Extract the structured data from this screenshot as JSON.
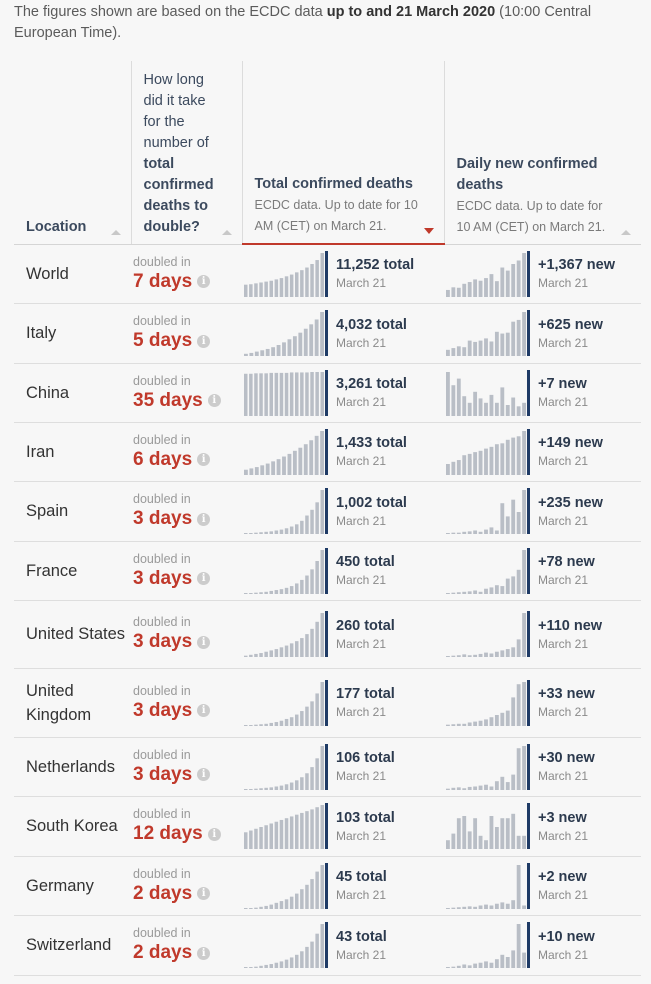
{
  "intro": {
    "prefix": "The figures shown are based on the ECDC data ",
    "emph": "up to and 21 March 2020",
    "suffix": " (10:00 Central European Time)."
  },
  "headers": {
    "location": "Location",
    "doubling": "How long did it take for the number of total confirmed deaths to double?",
    "doubling_parts": [
      "How long did it take for the number of",
      "total confirmed deaths to double?"
    ],
    "total_title": "Total confirmed deaths",
    "total_sub": "ECDC data. Up to date for 10 AM (CET) on March 21.",
    "daily_title": "Daily new confirmed deaths",
    "daily_sub": "ECDC data. Up to date for 10 AM (CET) on March 21."
  },
  "colors": {
    "accent": "#c0392b",
    "bar": "#b9bec6",
    "bar_highlight": "#1f3b66"
  },
  "rows": [
    {
      "location": "World",
      "doubled_label": "doubled in",
      "doubled": "7 days",
      "total": "11,252 total",
      "total_date": "March 21",
      "new": "+1,367 new",
      "new_date": "March 21",
      "total_series": [
        0.28,
        0.29,
        0.31,
        0.33,
        0.35,
        0.37,
        0.4,
        0.43,
        0.47,
        0.51,
        0.56,
        0.61,
        0.67,
        0.75,
        0.84,
        1.0
      ],
      "new_series": [
        0.16,
        0.22,
        0.21,
        0.3,
        0.34,
        0.4,
        0.37,
        0.43,
        0.52,
        0.36,
        0.67,
        0.6,
        0.75,
        0.83,
        1.0
      ]
    },
    {
      "location": "Italy",
      "doubled_label": "doubled in",
      "doubled": "5 days",
      "total": "4,032 total",
      "total_date": "March 21",
      "new": "+625 new",
      "new_date": "March 21",
      "total_series": [
        0.05,
        0.07,
        0.1,
        0.13,
        0.16,
        0.2,
        0.25,
        0.31,
        0.38,
        0.45,
        0.53,
        0.62,
        0.72,
        0.83,
        1.0
      ],
      "new_series": [
        0.14,
        0.18,
        0.22,
        0.2,
        0.35,
        0.32,
        0.35,
        0.4,
        0.33,
        0.55,
        0.51,
        0.53,
        0.78,
        0.82,
        1.0
      ]
    },
    {
      "location": "China",
      "doubled_label": "doubled in",
      "doubled": "35 days",
      "total": "3,261 total",
      "total_date": "March 21",
      "new": "+7 new",
      "new_date": "March 21",
      "total_series": [
        0.96,
        0.96,
        0.97,
        0.97,
        0.97,
        0.98,
        0.98,
        0.98,
        0.98,
        0.99,
        0.99,
        0.99,
        0.99,
        1.0,
        1.0,
        1.0
      ],
      "new_series": [
        1.0,
        0.7,
        0.85,
        0.45,
        0.3,
        0.55,
        0.4,
        0.3,
        0.48,
        0.3,
        0.65,
        0.25,
        0.42,
        0.22,
        0.3
      ]
    },
    {
      "location": "Iran",
      "doubled_label": "doubled in",
      "doubled": "6 days",
      "total": "1,433 total",
      "total_date": "March 21",
      "new": "+149 new",
      "new_date": "March 21",
      "total_series": [
        0.12,
        0.15,
        0.18,
        0.22,
        0.26,
        0.31,
        0.36,
        0.42,
        0.48,
        0.55,
        0.62,
        0.7,
        0.79,
        0.89,
        1.0
      ],
      "new_series": [
        0.25,
        0.3,
        0.34,
        0.45,
        0.48,
        0.52,
        0.55,
        0.6,
        0.64,
        0.7,
        0.72,
        0.8,
        0.85,
        0.88,
        1.0
      ]
    },
    {
      "location": "Spain",
      "doubled_label": "doubled in",
      "doubled": "3 days",
      "total": "1,002 total",
      "total_date": "March 21",
      "new": "+235 new",
      "new_date": "March 21",
      "total_series": [
        0.01,
        0.02,
        0.03,
        0.04,
        0.05,
        0.06,
        0.08,
        0.1,
        0.13,
        0.17,
        0.22,
        0.3,
        0.42,
        0.55,
        0.72,
        1.0
      ],
      "new_series": [
        0.02,
        0.03,
        0.03,
        0.05,
        0.06,
        0.08,
        0.05,
        0.1,
        0.15,
        0.08,
        0.7,
        0.4,
        0.78,
        0.5,
        1.0
      ]
    },
    {
      "location": "France",
      "doubled_label": "doubled in",
      "doubled": "3 days",
      "total": "450 total",
      "total_date": "March 21",
      "new": "+78 new",
      "new_date": "March 21",
      "total_series": [
        0.01,
        0.02,
        0.03,
        0.04,
        0.05,
        0.07,
        0.09,
        0.11,
        0.14,
        0.18,
        0.24,
        0.32,
        0.42,
        0.56,
        0.75,
        1.0
      ],
      "new_series": [
        0.02,
        0.03,
        0.04,
        0.05,
        0.06,
        0.08,
        0.05,
        0.12,
        0.15,
        0.2,
        0.18,
        0.35,
        0.4,
        0.55,
        1.0
      ]
    },
    {
      "location": "United States",
      "doubled_label": "doubled in",
      "doubled": "3 days",
      "total": "260 total",
      "total_date": "March 21",
      "new": "+110 new",
      "new_date": "March 21",
      "total_series": [
        0.03,
        0.05,
        0.07,
        0.09,
        0.12,
        0.15,
        0.18,
        0.22,
        0.26,
        0.31,
        0.36,
        0.43,
        0.52,
        0.64,
        0.8,
        1.0
      ],
      "new_series": [
        0.02,
        0.03,
        0.04,
        0.06,
        0.04,
        0.05,
        0.07,
        0.1,
        0.08,
        0.12,
        0.15,
        0.18,
        0.22,
        0.4,
        1.0
      ]
    },
    {
      "location": "United Kingdom",
      "doubled_label": "doubled in",
      "doubled": "3 days",
      "total": "177 total",
      "total_date": "March 21",
      "new": "+33 new",
      "new_date": "March 21",
      "total_series": [
        0.01,
        0.02,
        0.03,
        0.04,
        0.05,
        0.07,
        0.09,
        0.12,
        0.16,
        0.2,
        0.26,
        0.34,
        0.44,
        0.56,
        0.74,
        1.0
      ],
      "new_series": [
        0.03,
        0.04,
        0.05,
        0.05,
        0.08,
        0.1,
        0.12,
        0.15,
        0.2,
        0.25,
        0.3,
        0.35,
        0.65,
        0.95,
        1.0
      ]
    },
    {
      "location": "Netherlands",
      "doubled_label": "doubled in",
      "doubled": "3 days",
      "total": "106 total",
      "total_date": "March 21",
      "new": "+30 new",
      "new_date": "March 21",
      "total_series": [
        0.01,
        0.02,
        0.03,
        0.04,
        0.05,
        0.06,
        0.08,
        0.1,
        0.13,
        0.17,
        0.22,
        0.29,
        0.38,
        0.52,
        0.72,
        1.0
      ],
      "new_series": [
        0.03,
        0.05,
        0.06,
        0.04,
        0.07,
        0.08,
        0.1,
        0.12,
        0.08,
        0.2,
        0.3,
        0.18,
        0.35,
        0.95,
        1.0
      ]
    },
    {
      "location": "South Korea",
      "doubled_label": "doubled in",
      "doubled": "12 days",
      "total": "103 total",
      "total_date": "March 21",
      "new": "+3 new",
      "new_date": "March 21",
      "total_series": [
        0.38,
        0.42,
        0.46,
        0.5,
        0.54,
        0.58,
        0.62,
        0.66,
        0.7,
        0.74,
        0.78,
        0.82,
        0.86,
        0.9,
        0.95,
        1.0
      ],
      "new_series": [
        0.2,
        0.35,
        0.7,
        0.75,
        0.4,
        0.7,
        0.3,
        0.2,
        0.75,
        0.5,
        0.7,
        0.7,
        0.8,
        0.3,
        0.3
      ]
    },
    {
      "location": "Germany",
      "doubled_label": "doubled in",
      "doubled": "2 days",
      "total": "45 total",
      "total_date": "March 21",
      "new": "+2 new",
      "new_date": "March 21",
      "total_series": [
        0.01,
        0.02,
        0.03,
        0.05,
        0.07,
        0.1,
        0.14,
        0.18,
        0.22,
        0.28,
        0.35,
        0.45,
        0.55,
        0.68,
        0.85,
        1.0
      ],
      "new_series": [
        0.02,
        0.03,
        0.04,
        0.05,
        0.06,
        0.05,
        0.08,
        0.1,
        0.08,
        0.12,
        0.15,
        0.12,
        0.2,
        1.0,
        0.08
      ]
    },
    {
      "location": "Switzerland",
      "doubled_label": "doubled in",
      "doubled": "2 days",
      "total": "43 total",
      "total_date": "March 21",
      "new": "+10 new",
      "new_date": "March 21",
      "total_series": [
        0.01,
        0.02,
        0.03,
        0.05,
        0.07,
        0.09,
        0.12,
        0.15,
        0.19,
        0.24,
        0.3,
        0.38,
        0.48,
        0.6,
        0.78,
        1.0
      ],
      "new_series": [
        0.02,
        0.03,
        0.05,
        0.08,
        0.06,
        0.1,
        0.12,
        0.15,
        0.12,
        0.2,
        0.3,
        0.25,
        0.4,
        1.0,
        0.35
      ]
    }
  ]
}
